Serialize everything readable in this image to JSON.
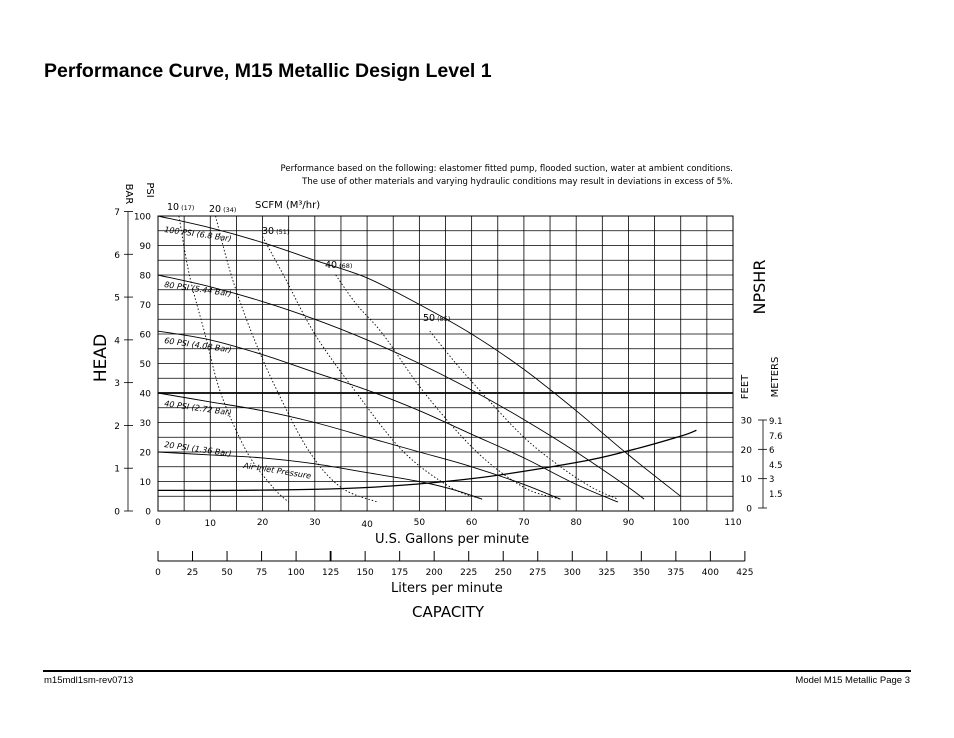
{
  "page": {
    "title": "Performance Curve, M15 Metallic Design Level 1",
    "footer_left": "m15mdl1sm-rev0713",
    "footer_right": "Model M15 Metallic Page 3"
  },
  "chart_data": {
    "type": "line",
    "note_line1": "Performance based on the following: elastomer fitted pump, flooded suction, water at ambient conditions.",
    "note_line2": "The use of other materials and varying hydraulic conditions may result in deviations in excess of 5%.",
    "head_label": "HEAD",
    "npshr_label": "NPSHR",
    "capacity_label": "CAPACITY",
    "x_axis": {
      "label": "U.S. Gallons per minute",
      "range": [
        0,
        110
      ],
      "ticks": [
        0,
        10,
        20,
        30,
        40,
        50,
        60,
        70,
        80,
        90,
        100,
        110
      ]
    },
    "x2_axis": {
      "label": "Liters per minute",
      "ticks": [
        0,
        25,
        50,
        75,
        100,
        125,
        150,
        175,
        200,
        225,
        250,
        275,
        300,
        325,
        350,
        375,
        400,
        425
      ]
    },
    "y_psi": {
      "label": "PSI",
      "range": [
        0,
        100
      ],
      "ticks": [
        0,
        10,
        20,
        30,
        40,
        50,
        60,
        70,
        80,
        90,
        100
      ]
    },
    "y_bar": {
      "label": "BAR",
      "ticks": [
        0,
        1,
        2,
        3,
        4,
        5,
        6,
        7
      ]
    },
    "npshr_feet": {
      "label": "FEET",
      "ticks": [
        0,
        10,
        20,
        30
      ]
    },
    "npshr_meters": {
      "label": "METERS",
      "ticks": [
        "1.5",
        "3",
        "4.5",
        "6",
        "7.6",
        "9.1"
      ]
    },
    "scfm_label": "SCFM (M³/hr)",
    "air_pressure_label": "Air Inlet Pressure",
    "air_pressure_curves": [
      {
        "name": "100 PSI (6.8 Bar)",
        "points": [
          [
            0,
            100
          ],
          [
            10,
            96
          ],
          [
            20,
            91
          ],
          [
            30,
            85
          ],
          [
            40,
            79
          ],
          [
            50,
            70
          ],
          [
            60,
            60
          ],
          [
            70,
            48
          ],
          [
            80,
            34
          ],
          [
            90,
            19
          ],
          [
            100,
            5
          ]
        ]
      },
      {
        "name": "80 PSI (5.44 Bar)",
        "points": [
          [
            0,
            80
          ],
          [
            10,
            76
          ],
          [
            20,
            71
          ],
          [
            30,
            65
          ],
          [
            40,
            58
          ],
          [
            50,
            50
          ],
          [
            60,
            41
          ],
          [
            70,
            31
          ],
          [
            80,
            20
          ],
          [
            90,
            8
          ],
          [
            93,
            4
          ]
        ]
      },
      {
        "name": "60 PSI (4.08 Bar)",
        "points": [
          [
            0,
            61
          ],
          [
            10,
            58
          ],
          [
            20,
            53
          ],
          [
            30,
            47
          ],
          [
            40,
            41
          ],
          [
            50,
            34
          ],
          [
            60,
            26
          ],
          [
            70,
            18
          ],
          [
            80,
            9
          ],
          [
            88,
            3
          ]
        ]
      },
      {
        "name": "40 PSI (2.72 Bar)",
        "points": [
          [
            0,
            40
          ],
          [
            10,
            37
          ],
          [
            20,
            34
          ],
          [
            30,
            30
          ],
          [
            40,
            25
          ],
          [
            50,
            20
          ],
          [
            60,
            15
          ],
          [
            70,
            9
          ],
          [
            77,
            4
          ]
        ]
      },
      {
        "name": "20 PSI (1.36 Bar)",
        "points": [
          [
            0,
            20
          ],
          [
            10,
            19
          ],
          [
            20,
            18
          ],
          [
            30,
            16
          ],
          [
            40,
            13
          ],
          [
            50,
            10
          ],
          [
            57,
            7
          ],
          [
            62,
            4
          ]
        ]
      }
    ],
    "scfm_curves": [
      {
        "name": "10",
        "sub": "(17)",
        "points": [
          [
            4,
            100
          ],
          [
            6,
            80
          ],
          [
            9,
            60
          ],
          [
            12,
            40
          ],
          [
            17,
            20
          ],
          [
            22,
            8
          ],
          [
            25,
            3
          ]
        ]
      },
      {
        "name": "20",
        "sub": "(34)",
        "points": [
          [
            11,
            100
          ],
          [
            14,
            80
          ],
          [
            18,
            60
          ],
          [
            23,
            40
          ],
          [
            29,
            20
          ],
          [
            35,
            8
          ],
          [
            42,
            3
          ]
        ]
      },
      {
        "name": "30",
        "sub": "(51)",
        "points": [
          [
            20,
            93
          ],
          [
            24,
            80
          ],
          [
            30,
            60
          ],
          [
            38,
            40
          ],
          [
            47,
            20
          ],
          [
            56,
            8
          ],
          [
            62,
            4
          ]
        ]
      },
      {
        "name": "40",
        "sub": "(68)",
        "points": [
          [
            34,
            80
          ],
          [
            38,
            70
          ],
          [
            43,
            60
          ],
          [
            51,
            40
          ],
          [
            61,
            20
          ],
          [
            70,
            8
          ],
          [
            77,
            4
          ]
        ]
      },
      {
        "name": "50",
        "sub": "(85)",
        "points": [
          [
            52,
            61
          ],
          [
            57,
            50
          ],
          [
            62,
            40
          ],
          [
            70,
            25
          ],
          [
            77,
            15
          ],
          [
            83,
            8
          ],
          [
            88,
            4
          ]
        ]
      }
    ],
    "npshr_curve": {
      "name": "NPSHR",
      "points_gpm_feet": [
        [
          0,
          6
        ],
        [
          20,
          6.1
        ],
        [
          40,
          7
        ],
        [
          60,
          10
        ],
        [
          80,
          15.5
        ],
        [
          90,
          19.5
        ],
        [
          100,
          24.5
        ],
        [
          103,
          26.5
        ]
      ]
    }
  }
}
